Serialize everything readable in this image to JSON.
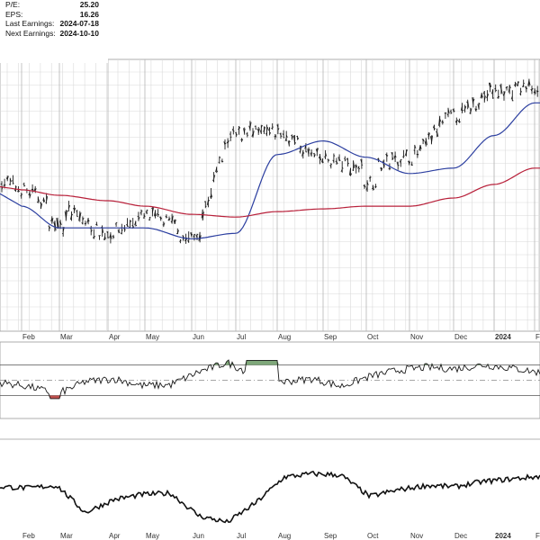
{
  "info_panel": [
    {
      "label": "P/E:",
      "value": "25.20"
    },
    {
      "label": "EPS:",
      "value": "16.26"
    },
    {
      "label": "Last Earnings:",
      "value": "2024-07-18"
    },
    {
      "label": "Next Earnings:",
      "value": "2024-10-10"
    }
  ],
  "chart_data": [
    {
      "type": "bar",
      "subtype": "ohlc-price-with-moving-averages",
      "title": "",
      "categories": [
        "Feb",
        "Mar",
        "Apr",
        "May",
        "Jun",
        "Jul",
        "Aug",
        "Sep",
        "Oct",
        "Nov",
        "Dec",
        "2024",
        "Fe"
      ],
      "bold_labels": [
        "2024"
      ],
      "grid": true,
      "series": [
        {
          "name": "",
          "kind": "price",
          "values": [
            0.52,
            0.45,
            0.36,
            0.42,
            0.38,
            0.72,
            0.73,
            0.63,
            0.6,
            0.64,
            0.79,
            0.88,
            0.9
          ]
        },
        {
          "name": "",
          "kind": "short-ma",
          "color": "#2c3fa0",
          "values": [
            0.46,
            0.38,
            0.38,
            0.38,
            0.34,
            0.36,
            0.65,
            0.7,
            0.64,
            0.58,
            0.6,
            0.72,
            0.84
          ]
        },
        {
          "name": "",
          "kind": "long-ma",
          "color": "#b8203a",
          "values": [
            0.52,
            0.5,
            0.48,
            0.46,
            0.43,
            0.42,
            0.44,
            0.45,
            0.46,
            0.46,
            0.49,
            0.54,
            0.6
          ]
        }
      ]
    },
    {
      "type": "line",
      "subtype": "oscillator",
      "upper_band": 70,
      "lower_band": 30,
      "mid_line": 50,
      "ylim": [
        0,
        100
      ],
      "values": [
        47,
        42,
        32,
        48,
        52,
        43,
        44,
        61,
        73,
        56,
        48,
        52,
        42,
        55,
        63,
        67,
        65,
        70,
        66,
        60
      ]
    },
    {
      "type": "line",
      "subtype": "relative-performance",
      "ylim": [
        0,
        1
      ],
      "values": [
        0.6,
        0.58,
        0.62,
        0.2,
        0.4,
        0.48,
        0.5,
        0.15,
        0.05,
        0.35,
        0.75,
        0.8,
        0.78,
        0.45,
        0.55,
        0.62,
        0.6,
        0.68,
        0.72,
        0.76
      ]
    }
  ]
}
